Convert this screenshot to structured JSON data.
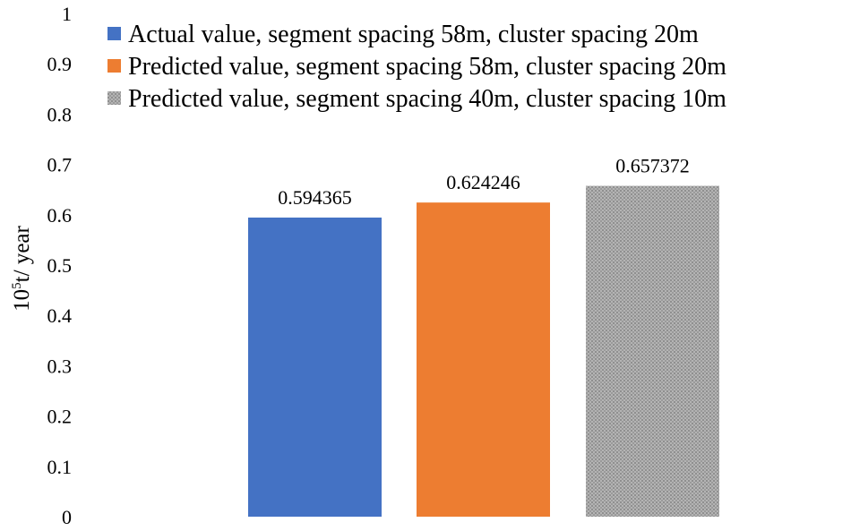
{
  "chart_data": {
    "type": "bar",
    "title": "",
    "xlabel": "",
    "ylabel_base": "10",
    "ylabel_sup": "5",
    "ylabel_rest": "t/ year",
    "ylim": [
      0,
      1
    ],
    "yticks": [
      "0",
      "0.1",
      "0.2",
      "0.3",
      "0.4",
      "0.5",
      "0.6",
      "0.7",
      "0.8",
      "0.9",
      "1"
    ],
    "grid": false,
    "legend_position": "top",
    "series": [
      {
        "name": "Actual value, segment spacing 58m, cluster spacing 20m",
        "value": 0.594365,
        "label": "0.594365",
        "color": "#4472c4",
        "pattern": false
      },
      {
        "name": "Predicted value, segment spacing 58m, cluster spacing 20m",
        "value": 0.624246,
        "label": "0.624246",
        "color": "#ed7d31",
        "pattern": false
      },
      {
        "name": "Predicted value, segment spacing 40m, cluster spacing 10m",
        "value": 0.657372,
        "label": "0.657372",
        "color": "#a5a5a5",
        "pattern": true
      }
    ]
  }
}
